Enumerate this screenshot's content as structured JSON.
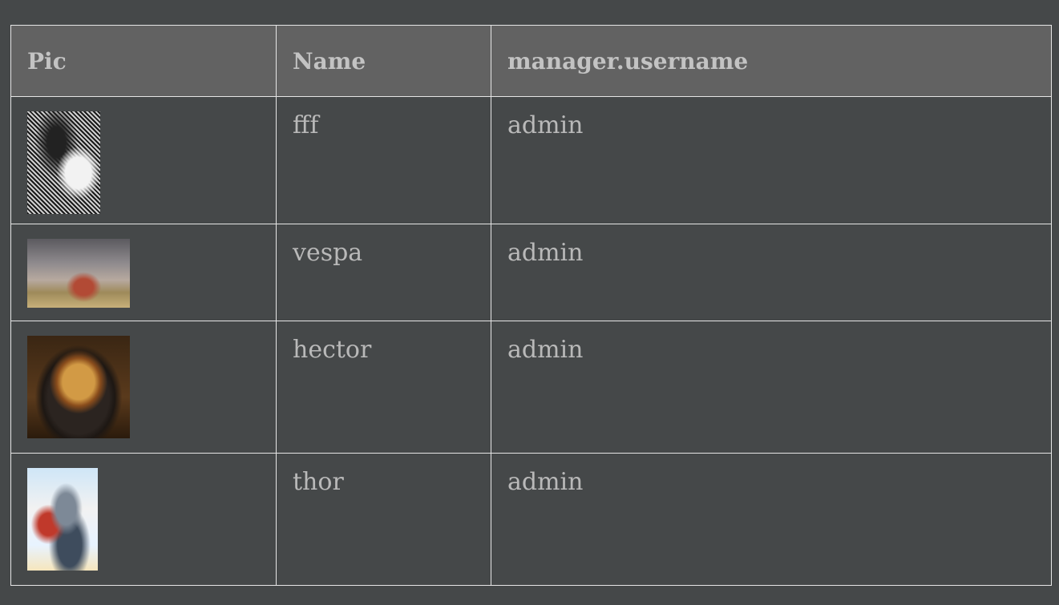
{
  "table": {
    "headers": [
      "Pic",
      "Name",
      "manager.username"
    ],
    "rows": [
      {
        "pic": "lena-photo",
        "name": "fff",
        "manager_username": "admin"
      },
      {
        "pic": "vespa-photo",
        "name": "vespa",
        "manager_username": "admin"
      },
      {
        "pic": "roast-chicken-photo",
        "name": "hector",
        "manager_username": "admin"
      },
      {
        "pic": "thor-photo",
        "name": "thor",
        "manager_username": "admin"
      }
    ]
  },
  "colors": {
    "page_background": "#454849",
    "header_background": "#626262",
    "grid_line": "#e6e6e6",
    "text": "#b9b9b9"
  }
}
